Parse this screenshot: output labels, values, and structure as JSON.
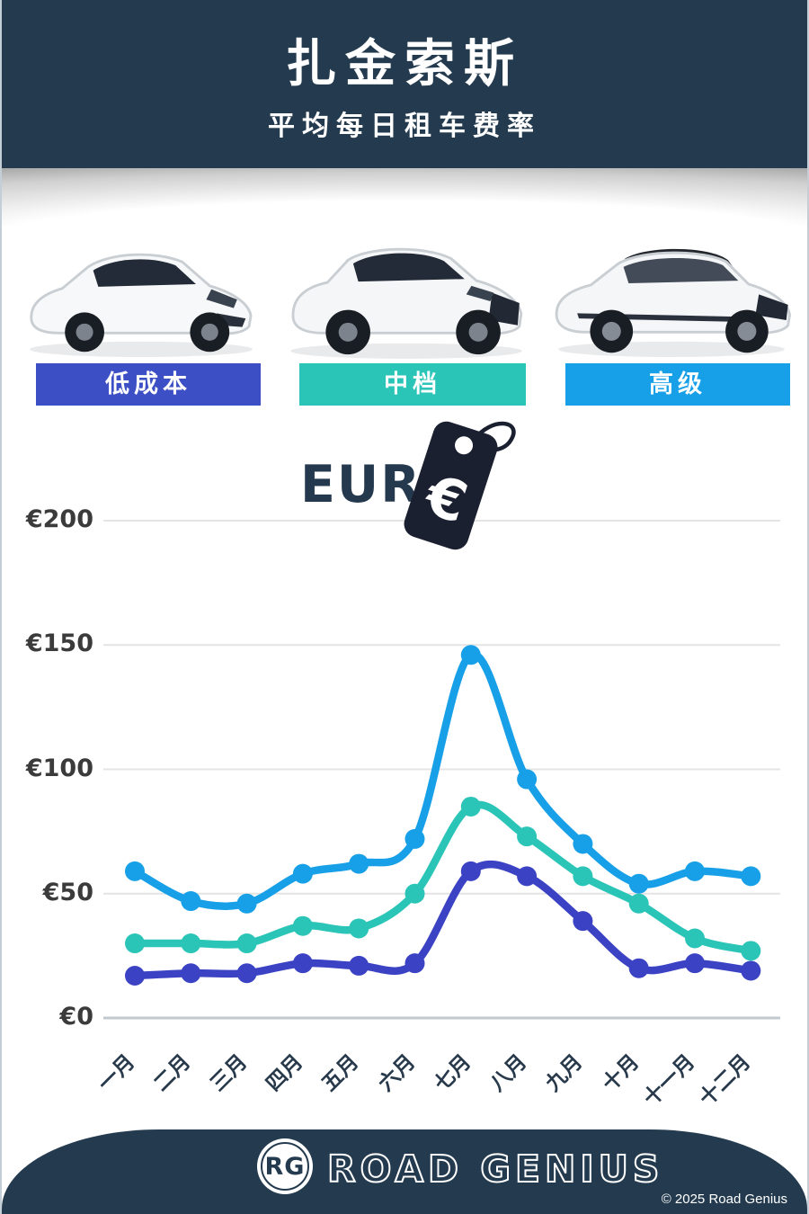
{
  "header": {
    "title": "扎金索斯",
    "subtitle": "平均每日租车费率"
  },
  "categories": [
    {
      "label": "低成本",
      "color": "#3D4FC4"
    },
    {
      "label": "中档",
      "color": "#2BC5B8"
    },
    {
      "label": "高级",
      "color": "#17A0E8"
    }
  ],
  "currency": {
    "label": "EUR",
    "symbol": "€"
  },
  "chart_data": {
    "type": "line",
    "title": "平均每日租车费率 (EUR)",
    "categories": [
      "一月",
      "二月",
      "三月",
      "四月",
      "五月",
      "六月",
      "七月",
      "八月",
      "九月",
      "十月",
      "十一月",
      "十二月"
    ],
    "series": [
      {
        "name": "高级",
        "color": "#17A0E8",
        "values": [
          59,
          47,
          46,
          58,
          62,
          72,
          146,
          96,
          70,
          54,
          59,
          57
        ]
      },
      {
        "name": "中档",
        "color": "#2BC5B8",
        "values": [
          30,
          30,
          30,
          37,
          36,
          50,
          85,
          73,
          57,
          46,
          32,
          27
        ]
      },
      {
        "name": "低成本",
        "color": "#3B43C4",
        "values": [
          17,
          18,
          18,
          22,
          21,
          22,
          59,
          57,
          39,
          20,
          22,
          19
        ]
      }
    ],
    "yticks": [
      {
        "label": "€200",
        "value": 200
      },
      {
        "label": "€150",
        "value": 150
      },
      {
        "label": "€100",
        "value": 100
      },
      {
        "label": "€50",
        "value": 50
      },
      {
        "label": "€0",
        "value": 0
      }
    ],
    "ylim": [
      0,
      200
    ],
    "grid": true,
    "legend_position": "none"
  },
  "footer": {
    "logo_initials": "RG",
    "brand": "ROAD GENIUS",
    "copyright": "© 2025 Road Genius"
  }
}
